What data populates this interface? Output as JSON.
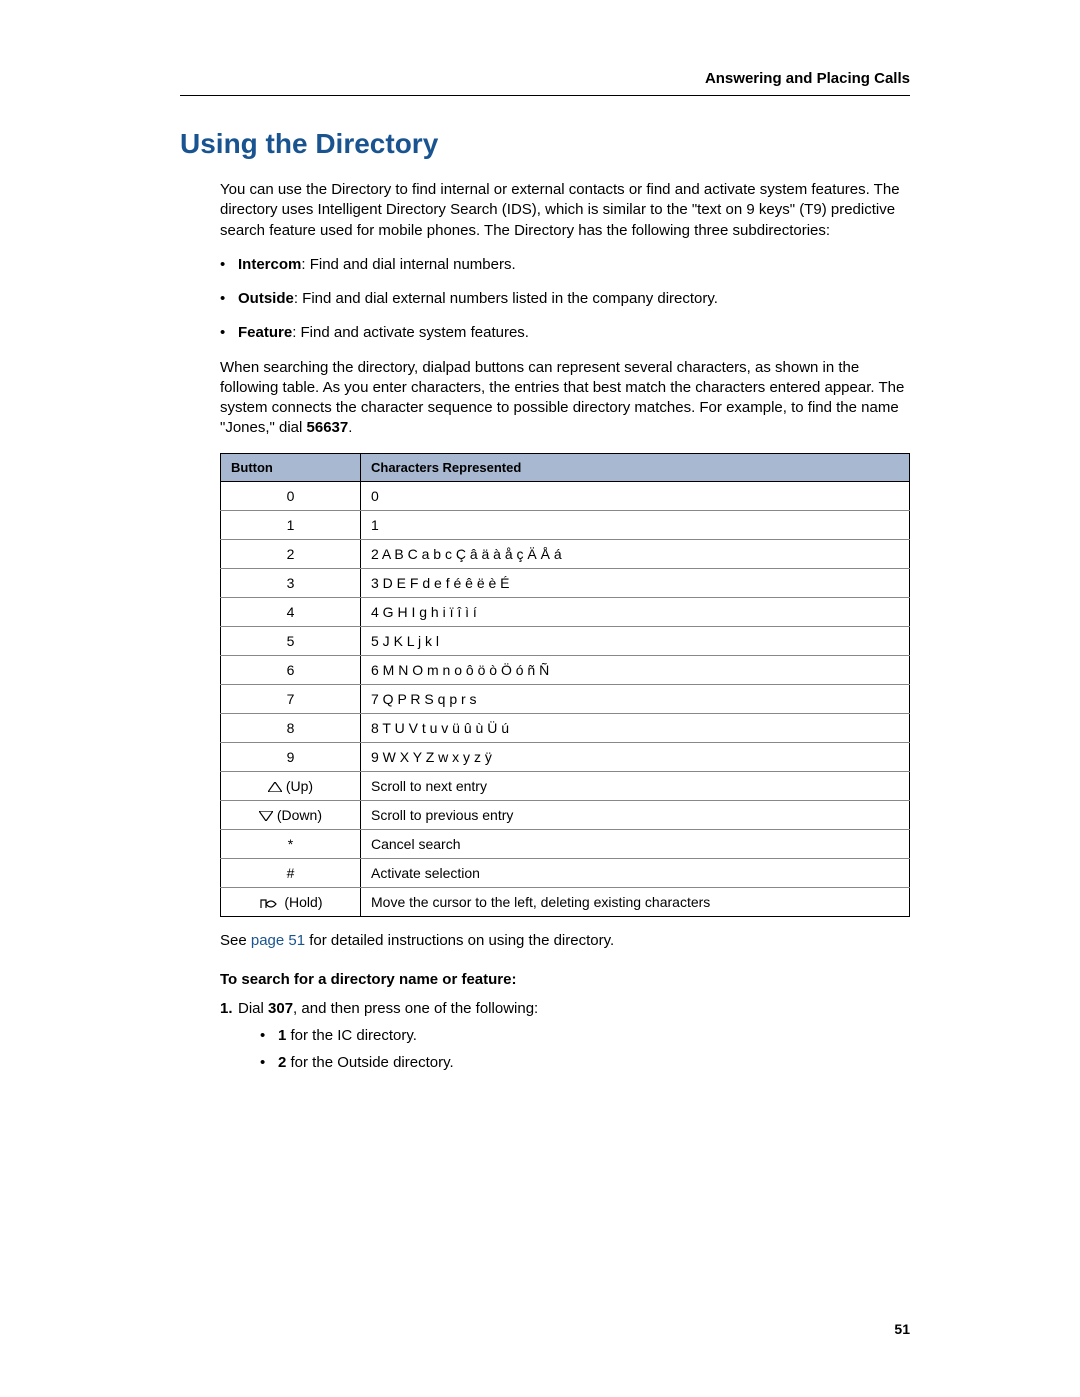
{
  "header": {
    "right": "Answering and Placing Calls"
  },
  "title": "Using the Directory",
  "intro": "You can use the Directory to find internal or external contacts or find and activate system features. The directory uses Intelligent Directory Search (IDS), which is similar to the \"text on 9 keys\" (T9) predictive search feature used for mobile phones. The Directory has the following three subdirectories:",
  "subdirs": [
    {
      "label": "Intercom",
      "text": ": Find and dial internal numbers."
    },
    {
      "label": "Outside",
      "text": ": Find and dial external numbers listed in the company directory."
    },
    {
      "label": "Feature",
      "text": ": Find and activate system features."
    }
  ],
  "search_para_pre": "When searching the directory, dialpad buttons can represent several characters, as shown in the following table. As you enter characters, the entries that best match the characters entered appear. The system connects the character sequence to possible directory matches. For example, to find the name \"Jones,\" dial ",
  "search_para_bold": "56637",
  "search_para_post": ".",
  "table": {
    "columns": [
      "Button",
      "Characters Represented"
    ],
    "rows": [
      {
        "button": "0",
        "chars": "0"
      },
      {
        "button": "1",
        "chars": "1"
      },
      {
        "button": "2",
        "chars": "2 A B C a b c Ç â ä à å ç Ä Å á"
      },
      {
        "button": "3",
        "chars": "3 D E F d e f é ê ë è É"
      },
      {
        "button": "4",
        "chars": "4 G H I g h i ï î ì í"
      },
      {
        "button": "5",
        "chars": "5 J K L j k l"
      },
      {
        "button": "6",
        "chars": "6 M N O m n o ô ö ò Ö ó ñ Ñ"
      },
      {
        "button": "7",
        "chars": "7 Q P R S q p r s"
      },
      {
        "button": "8",
        "chars": "8 T U V t u v ü û ù Ü ú"
      },
      {
        "button": "9",
        "chars": "9 W X Y Z w x y z ÿ"
      },
      {
        "button": "__UP__",
        "button_suffix": " (Up)",
        "chars": "Scroll to next entry"
      },
      {
        "button": "__DOWN__",
        "button_suffix": " (Down)",
        "chars": "Scroll to previous entry"
      },
      {
        "button": "*",
        "chars": "Cancel search"
      },
      {
        "button": "#",
        "chars": "Activate selection"
      },
      {
        "button": "__HOLD__",
        "button_suffix": " (Hold)",
        "chars": "Move the cursor to the left, deleting existing characters"
      }
    ],
    "header_bg": "#a7b8d0",
    "border_color": "#000000",
    "row_border_color": "#888888"
  },
  "see_pre": "See ",
  "see_link": "page 51",
  "see_post": " for detailed instructions on using the directory.",
  "instr_head": "To search for a directory name or feature:",
  "step1_pre": "Dial ",
  "step1_bold": "307",
  "step1_post": ", and then press one of the following:",
  "step1_subs": [
    {
      "bold": "1",
      "text": " for the IC directory."
    },
    {
      "bold": "2",
      "text": " for the Outside directory."
    }
  ],
  "page_number": "51"
}
